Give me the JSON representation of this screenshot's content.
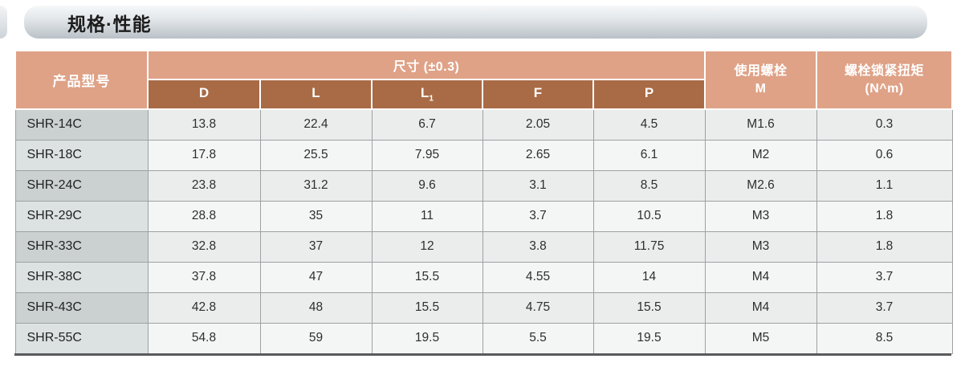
{
  "page": {
    "title": "规格·性能"
  },
  "table": {
    "header": {
      "product_col": "产品型号",
      "dim_group": "尺寸 (±0.3)",
      "dim_cols": [
        {
          "t": "D"
        },
        {
          "t": "L"
        },
        {
          "t": "L",
          "sub": "1"
        },
        {
          "t": "F"
        },
        {
          "t": "P"
        }
      ],
      "bolt_col": {
        "line1": "使用螺栓",
        "line2": "M"
      },
      "torque_col": {
        "line1": "螺栓锁紧扭矩",
        "line2": "(N^m)"
      }
    },
    "rows": [
      {
        "model": "SHR-14C",
        "values": [
          "13.8",
          "22.4",
          "6.7",
          "2.05",
          "4.5",
          "M1.6",
          "0.3"
        ]
      },
      {
        "model": "SHR-18C",
        "values": [
          "17.8",
          "25.5",
          "7.95",
          "2.65",
          "6.1",
          "M2",
          "0.6"
        ]
      },
      {
        "model": "SHR-24C",
        "values": [
          "23.8",
          "31.2",
          "9.6",
          "3.1",
          "8.5",
          "M2.6",
          "1.1"
        ]
      },
      {
        "model": "SHR-29C",
        "values": [
          "28.8",
          "35",
          "11",
          "3.7",
          "10.5",
          "M3",
          "1.8"
        ]
      },
      {
        "model": "SHR-33C",
        "values": [
          "32.8",
          "37",
          "12",
          "3.8",
          "11.75",
          "M3",
          "1.8"
        ]
      },
      {
        "model": "SHR-38C",
        "values": [
          "37.8",
          "47",
          "15.5",
          "4.55",
          "14",
          "M4",
          "3.7"
        ]
      },
      {
        "model": "SHR-43C",
        "values": [
          "42.8",
          "48",
          "15.5",
          "4.75",
          "15.5",
          "M4",
          "3.7"
        ]
      },
      {
        "model": "SHR-55C",
        "values": [
          "54.8",
          "59",
          "19.5",
          "5.5",
          "19.5",
          "M5",
          "8.5"
        ]
      }
    ]
  },
  "colors": {
    "header_salmon": "#dfa287",
    "header_brown": "#a96b46",
    "row_model_dark": "#cbd1d1",
    "row_model_light": "#dce2e2",
    "row_cell_dark": "#ebeded",
    "row_cell_light": "#f4f6f6",
    "grid_line": "#9da1a1",
    "bottom_rule": "#595a5c"
  }
}
